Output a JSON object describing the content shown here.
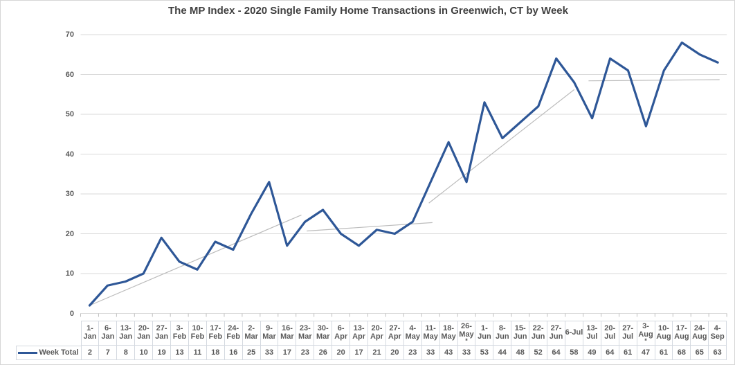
{
  "title": "The MP Index - 2020 Single Family Home Transactions in Greenwich, CT by Week",
  "legend": {
    "label": "Week Total"
  },
  "colors": {
    "series_line": "#2e5797",
    "gridline": "#d9d9d9",
    "axis_line": "#d9d9d9",
    "tick": "#bfbfbf",
    "trendline": "#bcbcbc",
    "axis_text": "#595959",
    "title_text": "#3f3f3f",
    "table_border": "#d4d9e0"
  },
  "chart_data": {
    "type": "line",
    "title": "The MP Index - 2020 Single Family Home Transactions in Greenwich, CT by Week",
    "categories": [
      "1-Jan",
      "6-Jan",
      "13-Jan",
      "20-Jan",
      "27-Jan",
      "3-Feb",
      "10-Feb",
      "17-Feb",
      "24-Feb",
      "2-Mar",
      "9-Mar",
      "16-Mar",
      "23-Mar",
      "30-Mar",
      "6-Apr",
      "13-Apr",
      "20-Apr",
      "27-Apr",
      "4-May",
      "11-May",
      "18-May",
      "26-May",
      "1-Jun",
      "8-Jun",
      "15-Jun",
      "22-Jun",
      "27-Jun",
      "6-Jul",
      "13-Jul",
      "20-Jul",
      "27-Jul",
      "3-Aug",
      "10-Aug",
      "17-Aug",
      "24-Aug",
      "4-Sep"
    ],
    "category_display_lines": [
      [
        "1-",
        "Jan"
      ],
      [
        "6-",
        "Jan"
      ],
      [
        "13-",
        "Jan"
      ],
      [
        "20-",
        "Jan"
      ],
      [
        "27-",
        "Jan"
      ],
      [
        "3-",
        "Feb"
      ],
      [
        "10-",
        "Feb"
      ],
      [
        "17-",
        "Feb"
      ],
      [
        "24-",
        "Feb"
      ],
      [
        "2-",
        "Mar"
      ],
      [
        "9-",
        "Mar"
      ],
      [
        "16-",
        "Mar"
      ],
      [
        "23-",
        "Mar"
      ],
      [
        "30-",
        "Mar"
      ],
      [
        "6-",
        "Apr"
      ],
      [
        "13-",
        "Apr"
      ],
      [
        "20-",
        "Apr"
      ],
      [
        "27-",
        "Apr"
      ],
      [
        "4-",
        "May"
      ],
      [
        "11-",
        "May"
      ],
      [
        "18-",
        "May"
      ],
      [
        "26-",
        "May",
        "*"
      ],
      [
        "1-",
        "Jun"
      ],
      [
        "8-",
        "Jun"
      ],
      [
        "15-",
        "Jun"
      ],
      [
        "22-",
        "Jun"
      ],
      [
        "27-",
        "Jun"
      ],
      [
        "6-Jul"
      ],
      [
        "13-",
        "Jul"
      ],
      [
        "20-",
        "Jul"
      ],
      [
        "27-",
        "Jul"
      ],
      [
        "3-",
        "Aug",
        "*"
      ],
      [
        "10-",
        "Aug"
      ],
      [
        "17-",
        "Aug"
      ],
      [
        "24-",
        "Aug"
      ],
      [
        "4-",
        "Sep"
      ]
    ],
    "footnote_marked_categories": [
      "26-May",
      "3-Aug"
    ],
    "series": [
      {
        "name": "Week Total",
        "values": [
          2,
          7,
          8,
          10,
          19,
          13,
          11,
          18,
          16,
          25,
          33,
          17,
          23,
          26,
          20,
          17,
          21,
          20,
          23,
          33,
          43,
          33,
          53,
          44,
          48,
          52,
          64,
          58,
          49,
          64,
          61,
          47,
          61,
          68,
          65,
          63
        ]
      }
    ],
    "ylim": [
      0,
      70
    ],
    "yticks": [
      0,
      10,
      20,
      30,
      40,
      50,
      60,
      70
    ],
    "grid": true,
    "legend_position": "bottom-left",
    "data_table_shown": true,
    "trendlines": [
      {
        "x1": 0.0,
        "y1": 2.0,
        "x2": 11.8,
        "y2": 24.7
      },
      {
        "x1": 12.1,
        "y1": 20.7,
        "x2": 19.1,
        "y2": 22.8
      },
      {
        "x1": 18.9,
        "y1": 27.7,
        "x2": 27.0,
        "y2": 56.2
      },
      {
        "x1": 27.8,
        "y1": 58.4,
        "x2": 35.1,
        "y2": 58.7
      }
    ]
  }
}
